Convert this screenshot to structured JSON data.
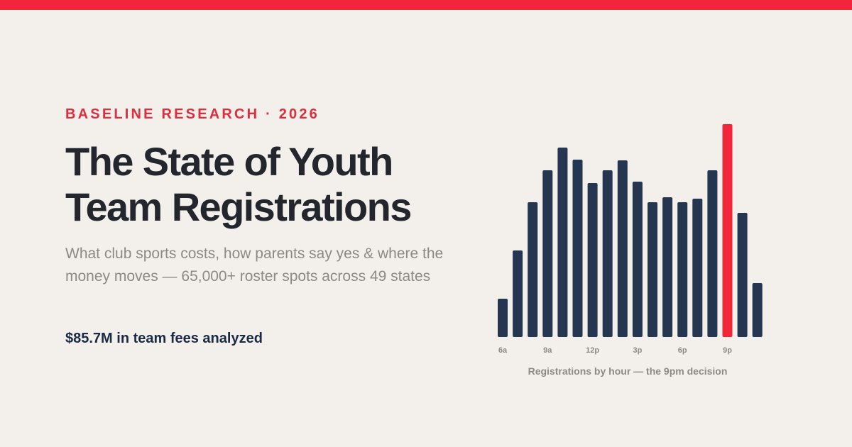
{
  "header": {
    "eyebrow": "BASELINE RESEARCH · 2026",
    "title": "The State of Youth Team Registrations",
    "subtitle": "What club sports costs, how parents say yes & where the money moves — 65,000+ roster spots across 49 states",
    "stat": "$85.7M in team fees analyzed"
  },
  "colors": {
    "accent": "#f2263a",
    "bar": "#243650",
    "background": "#f3f0ec"
  },
  "chart_data": {
    "type": "bar",
    "title": "",
    "caption": "Registrations by hour — the 9pm decision",
    "xlabel": "",
    "ylabel": "",
    "categories": [
      "6a",
      "7a",
      "8a",
      "9a",
      "10a",
      "11a",
      "12p",
      "1p",
      "2p",
      "3p",
      "4p",
      "5p",
      "6p",
      "7p",
      "8p",
      "9p",
      "10p",
      "11p"
    ],
    "tick_labels": [
      "6a",
      "",
      "",
      "9a",
      "",
      "",
      "12p",
      "",
      "",
      "3p",
      "",
      "",
      "6p",
      "",
      "",
      "9p",
      "",
      ""
    ],
    "values": [
      54,
      122,
      190,
      235,
      267,
      250,
      217,
      235,
      249,
      219,
      190,
      197,
      190,
      195,
      235,
      300,
      175,
      76
    ],
    "highlight_index": 15,
    "ylim": [
      0,
      300
    ],
    "grid": false,
    "legend": "none"
  }
}
